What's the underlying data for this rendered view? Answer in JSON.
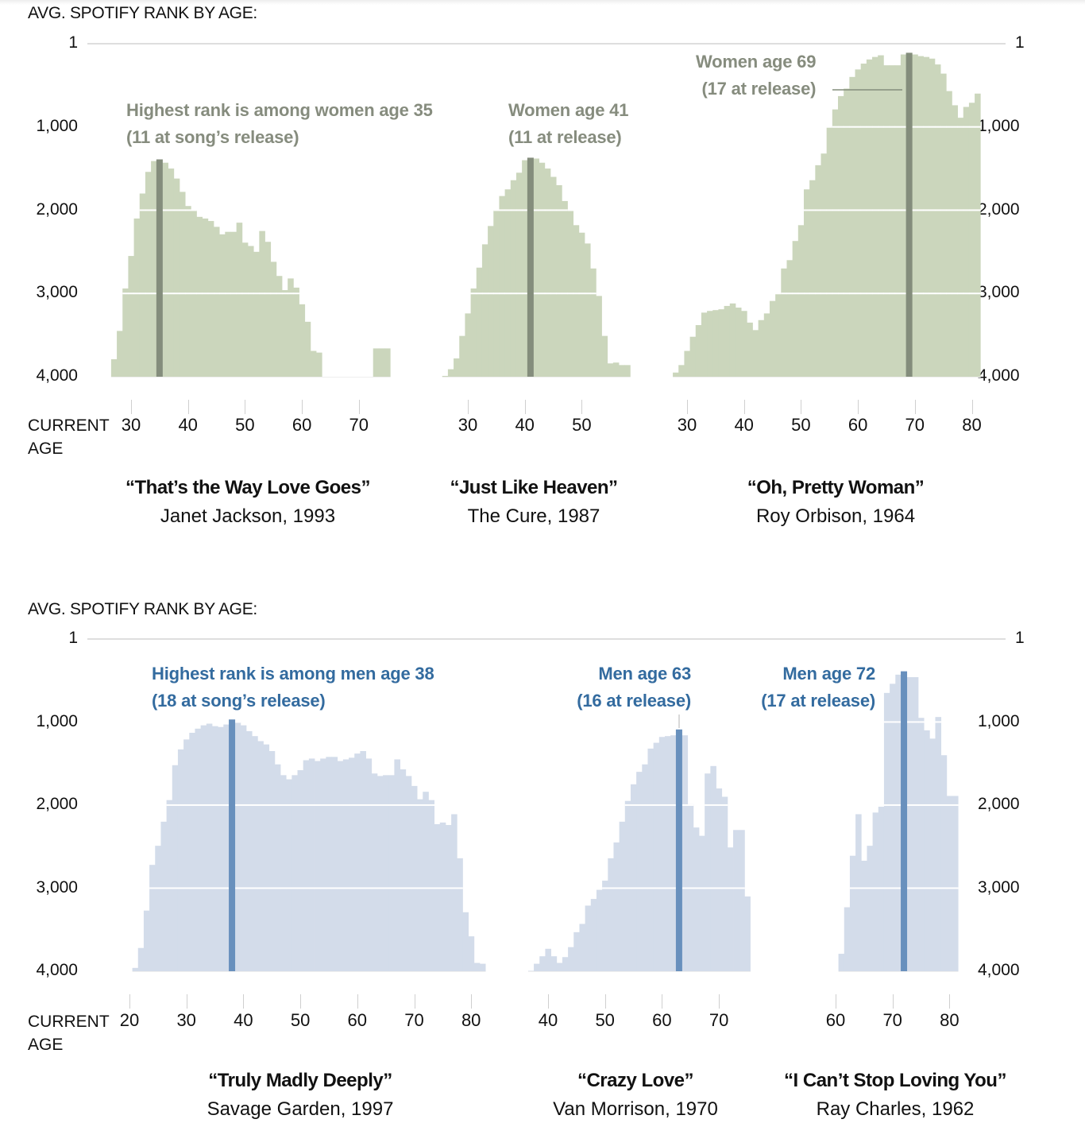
{
  "chart_data": [
    {
      "type": "bar",
      "panel": "top",
      "group": "women",
      "title": "“That’s the Way Love Goes”",
      "subtitle": "Janet Jackson, 1993",
      "xlabel": "CURRENT AGE",
      "ylabel": "AVG. SPOTIFY RANK BY AGE:",
      "xticks": [
        30,
        40,
        50,
        60,
        70
      ],
      "highlight_age": 35,
      "annotation": [
        "Highest rank is among women age 35",
        "(11 at song’s release)"
      ],
      "x": [
        27,
        28,
        29,
        30,
        31,
        32,
        33,
        34,
        35,
        36,
        37,
        38,
        39,
        40,
        41,
        42,
        43,
        44,
        45,
        46,
        47,
        48,
        49,
        50,
        51,
        52,
        53,
        54,
        55,
        56,
        57,
        58,
        59,
        60,
        61,
        62,
        63,
        73,
        74,
        75
      ],
      "values": [
        3790,
        3450,
        2940,
        2550,
        2100,
        1800,
        1540,
        1410,
        1390,
        1430,
        1500,
        1620,
        1780,
        1950,
        2000,
        2080,
        2100,
        2130,
        2200,
        2290,
        2260,
        2260,
        2150,
        2390,
        2430,
        2500,
        2250,
        2380,
        2620,
        2790,
        2960,
        2820,
        2930,
        3130,
        3340,
        3690,
        3710,
        3660,
        3660,
        3660
      ]
    },
    {
      "type": "bar",
      "panel": "top",
      "group": "women",
      "title": "“Just Like Heaven”",
      "subtitle": "The Cure, 1987",
      "xticks": [
        30,
        40,
        50
      ],
      "highlight_age": 41,
      "annotation": [
        "Women age 41",
        "(11 at release)"
      ],
      "x": [
        26,
        27,
        28,
        29,
        30,
        31,
        32,
        33,
        34,
        35,
        36,
        37,
        38,
        39,
        40,
        41,
        42,
        43,
        44,
        45,
        46,
        47,
        48,
        49,
        50,
        51,
        52,
        53,
        54,
        55,
        56,
        57,
        58
      ],
      "values": [
        3990,
        3910,
        3780,
        3510,
        3240,
        2940,
        2690,
        2410,
        2190,
        2000,
        1830,
        1750,
        1640,
        1550,
        1400,
        1370,
        1380,
        1430,
        1500,
        1600,
        1700,
        1890,
        2010,
        2180,
        2270,
        2400,
        2700,
        3030,
        3510,
        3840,
        3830,
        3860,
        3860
      ]
    },
    {
      "type": "bar",
      "panel": "top",
      "group": "women",
      "title": "“Oh, Pretty Woman”",
      "subtitle": "Roy Orbison, 1964",
      "xticks": [
        30,
        40,
        50,
        60,
        70,
        80
      ],
      "highlight_age": 69,
      "annotation": [
        "Women age 69",
        "(17 at release)"
      ],
      "x": [
        28,
        29,
        30,
        31,
        32,
        33,
        34,
        35,
        36,
        37,
        38,
        39,
        40,
        41,
        42,
        43,
        44,
        45,
        46,
        47,
        48,
        49,
        50,
        51,
        52,
        53,
        54,
        55,
        56,
        57,
        58,
        59,
        60,
        61,
        62,
        63,
        64,
        65,
        66,
        67,
        68,
        69,
        70,
        71,
        72,
        73,
        74,
        75,
        76,
        77,
        78,
        79,
        80,
        81
      ],
      "values": [
        3950,
        3860,
        3690,
        3520,
        3380,
        3230,
        3210,
        3200,
        3190,
        3150,
        3120,
        3170,
        3210,
        3350,
        3440,
        3320,
        3240,
        3090,
        3010,
        2700,
        2600,
        2370,
        2180,
        1750,
        1640,
        1460,
        1320,
        1010,
        790,
        630,
        540,
        400,
        310,
        240,
        190,
        160,
        140,
        260,
        260,
        260,
        130,
        110,
        130,
        150,
        160,
        180,
        250,
        360,
        570,
        740,
        890,
        760,
        710,
        600
      ]
    },
    {
      "type": "bar",
      "panel": "bottom",
      "group": "men",
      "title": "“Truly Madly Deeply”",
      "subtitle": "Savage Garden, 1997",
      "xlabel": "CURRENT AGE",
      "ylabel": "AVG. SPOTIFY RANK BY AGE:",
      "xticks": [
        20,
        30,
        40,
        50,
        60,
        70,
        80
      ],
      "highlight_age": 38,
      "annotation": [
        "Highest rank is among men age 38",
        "(18 at song’s release)"
      ],
      "x": [
        21,
        22,
        23,
        24,
        25,
        26,
        27,
        28,
        29,
        30,
        31,
        32,
        33,
        34,
        35,
        36,
        37,
        38,
        39,
        40,
        41,
        42,
        43,
        44,
        45,
        46,
        47,
        48,
        49,
        50,
        51,
        52,
        53,
        54,
        55,
        56,
        57,
        58,
        59,
        60,
        61,
        62,
        63,
        64,
        65,
        66,
        67,
        68,
        69,
        70,
        71,
        72,
        73,
        74,
        75,
        76,
        77,
        78,
        79,
        80,
        81,
        82
      ],
      "values": [
        3960,
        3720,
        3270,
        2720,
        2490,
        2200,
        1940,
        1520,
        1330,
        1210,
        1130,
        1080,
        1040,
        1020,
        1050,
        1060,
        1030,
        970,
        1000,
        1040,
        1110,
        1170,
        1230,
        1270,
        1350,
        1510,
        1640,
        1690,
        1640,
        1580,
        1460,
        1440,
        1470,
        1440,
        1420,
        1420,
        1470,
        1450,
        1430,
        1380,
        1350,
        1440,
        1620,
        1650,
        1640,
        1640,
        1450,
        1570,
        1650,
        1770,
        1930,
        1840,
        1940,
        2230,
        2210,
        2240,
        2110,
        2640,
        3290,
        3580,
        3900,
        3910
      ]
    },
    {
      "type": "bar",
      "panel": "bottom",
      "group": "men",
      "title": "“Crazy Love”",
      "subtitle": "Van Morrison, 1970",
      "xticks": [
        40,
        50,
        60,
        70
      ],
      "highlight_age": 63,
      "annotation": [
        "Men age 63",
        "(16 at release)"
      ],
      "x": [
        37,
        38,
        39,
        40,
        41,
        42,
        43,
        44,
        45,
        46,
        47,
        48,
        49,
        50,
        51,
        52,
        53,
        54,
        55,
        56,
        57,
        58,
        59,
        60,
        61,
        62,
        63,
        64,
        65,
        66,
        67,
        68,
        69,
        70,
        71,
        72,
        73,
        74,
        75
      ],
      "values": [
        3995,
        3910,
        3820,
        3730,
        3820,
        3900,
        3830,
        3710,
        3530,
        3430,
        3210,
        3130,
        3020,
        2910,
        2640,
        2450,
        2200,
        1950,
        1750,
        1600,
        1510,
        1320,
        1250,
        1180,
        1170,
        1160,
        1090,
        1160,
        1990,
        2270,
        2370,
        1620,
        1530,
        1800,
        1900,
        2510,
        2300,
        2300,
        3100
      ]
    },
    {
      "type": "bar",
      "panel": "bottom",
      "group": "men",
      "title": "“I Can’t Stop Loving You”",
      "subtitle": "Ray Charles, 1962",
      "xticks": [
        60,
        70,
        80
      ],
      "highlight_age": 72,
      "annotation": [
        "Men age 72",
        "(17 at release)"
      ],
      "x": [
        61,
        62,
        63,
        64,
        65,
        66,
        67,
        68,
        69,
        70,
        71,
        72,
        73,
        74,
        75,
        76,
        77,
        78,
        79,
        80,
        81
      ],
      "values": [
        3790,
        3230,
        2610,
        2110,
        2670,
        2490,
        2090,
        2020,
        650,
        540,
        430,
        390,
        460,
        460,
        950,
        1100,
        1200,
        940,
        1400,
        1890,
        1890
      ]
    }
  ],
  "panels": {
    "top": {
      "title": "AVG. SPOTIFY RANK BY AGE:",
      "yticks": [
        "1",
        "1,000",
        "2,000",
        "3,000",
        "4,000"
      ],
      "axis_name": [
        "CURRENT",
        "AGE"
      ]
    },
    "bottom": {
      "title": "AVG. SPOTIFY RANK BY AGE:",
      "yticks": [
        "1",
        "1,000",
        "2,000",
        "3,000",
        "4,000"
      ],
      "axis_name": [
        "CURRENT",
        "AGE"
      ]
    }
  },
  "y_range": [
    1,
    4000
  ],
  "colors": {
    "women_fill": "#cbd6bc",
    "women_line": "#848d7c",
    "women_text": "#868c7e",
    "men_fill": "#d3dcea",
    "men_line": "#6890bd",
    "men_text": "#336b9f"
  }
}
